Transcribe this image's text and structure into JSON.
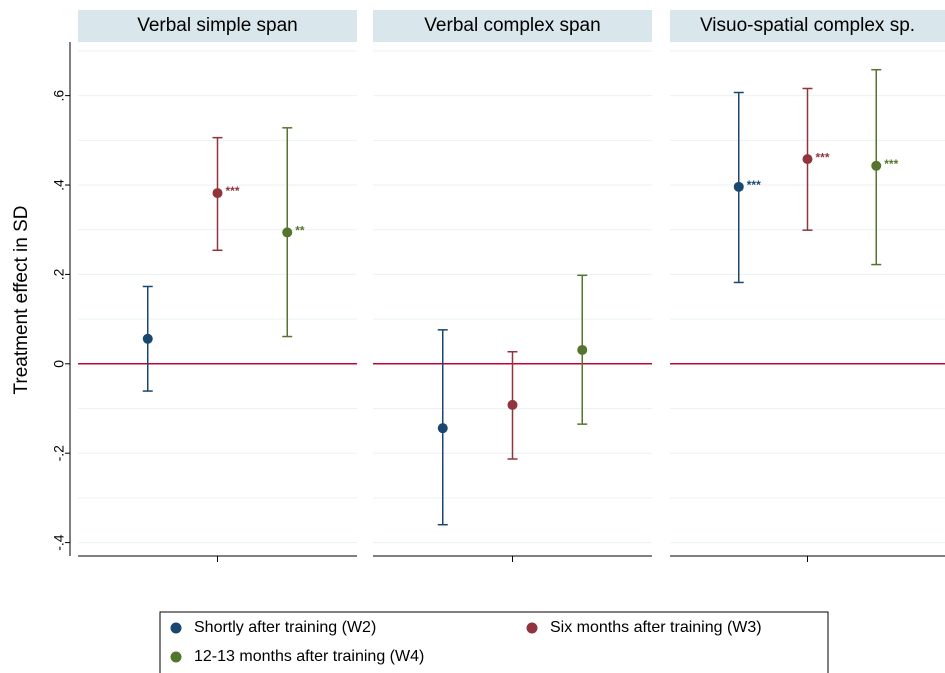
{
  "chart_data": {
    "type": "errorbar",
    "panels": [
      "Verbal simple span",
      "Verbal complex span",
      "Visuo-spatial complex sp."
    ],
    "y_label": "Treatment effect in SD",
    "ylim": [
      -0.43,
      0.72
    ],
    "yticks": [
      {
        "value": -0.4,
        "label": "-.4"
      },
      {
        "value": -0.2,
        "label": "-.2"
      },
      0,
      {
        "value": 0.2,
        "label": ".2"
      },
      {
        "value": 0.4,
        "label": ".4"
      },
      {
        "value": 0.6,
        "label": ".6"
      }
    ],
    "minor_grid": [
      -0.3,
      -0.1,
      0.1,
      0.3,
      0.5,
      0.7
    ],
    "grid": true,
    "refline": 0,
    "refline_color": "#c10534",
    "legend": "bottom",
    "series": [
      {
        "name": "Shortly after training (W2)",
        "color": "#1a476f",
        "values": [
          0.056,
          -0.144,
          0.396
        ],
        "lower": [
          -0.061,
          -0.36,
          0.182
        ],
        "upper": [
          0.173,
          0.076,
          0.607
        ],
        "stars": [
          null,
          null,
          "***"
        ]
      },
      {
        "name": "Six months after training (W3)",
        "color": "#90353b",
        "values": [
          0.382,
          -0.092,
          0.458
        ],
        "lower": [
          0.254,
          -0.213,
          0.299
        ],
        "upper": [
          0.506,
          0.027,
          0.616
        ],
        "stars": [
          "***",
          null,
          "***"
        ]
      },
      {
        "name": "12-13 months after training (W4)",
        "color": "#55752f",
        "values": [
          0.294,
          0.031,
          0.443
        ],
        "lower": [
          0.061,
          -0.135,
          0.222
        ],
        "upper": [
          0.528,
          0.198,
          0.658
        ],
        "stars": [
          "**",
          null,
          "***"
        ]
      }
    ]
  }
}
